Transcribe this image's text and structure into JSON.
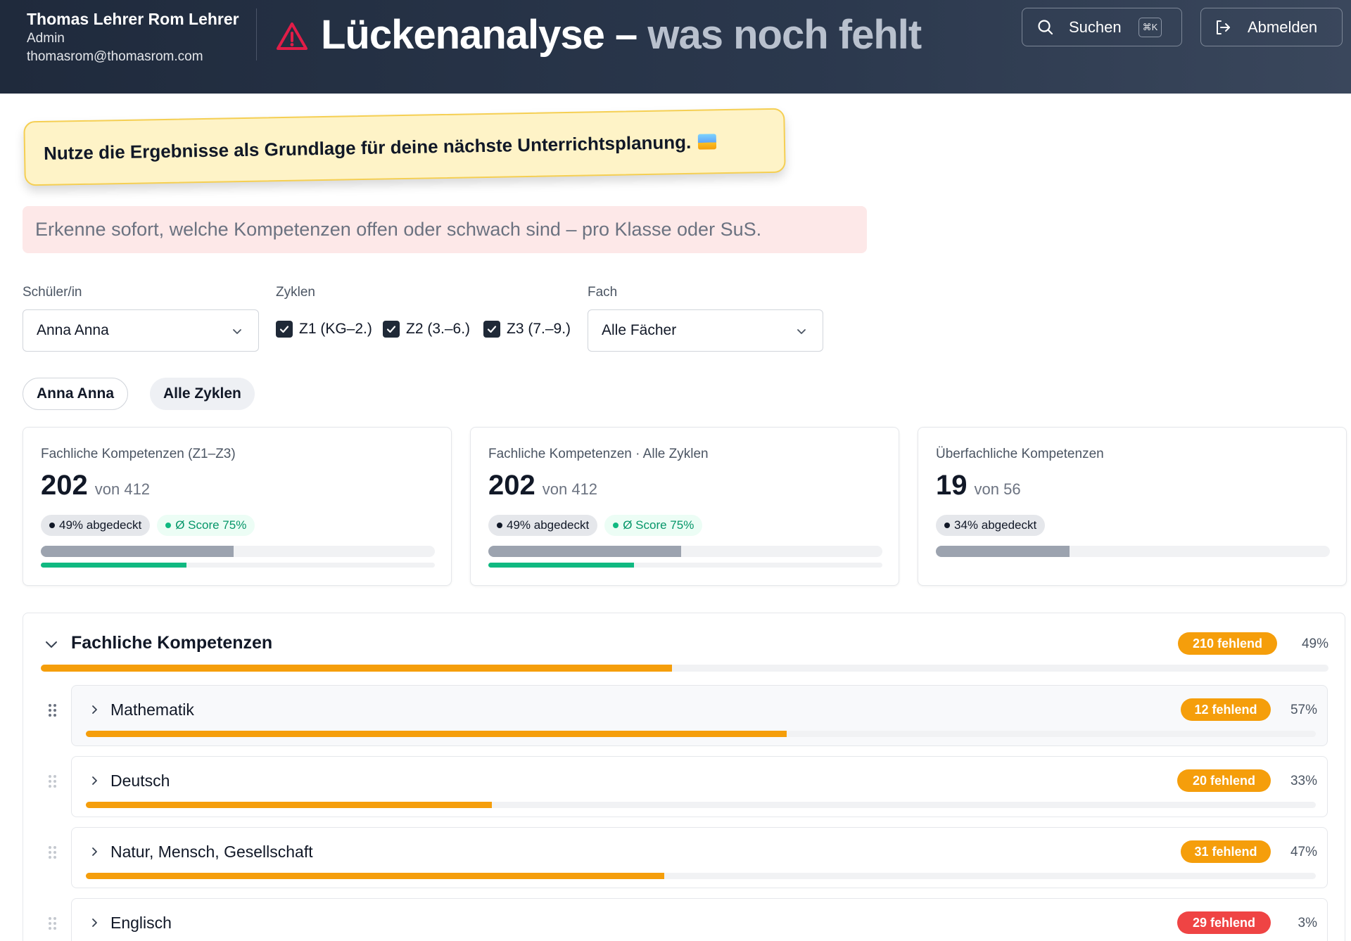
{
  "header": {
    "user_name": "Thomas Lehrer Rom Lehrer",
    "user_role": "Admin",
    "user_email": "thomasrom@thomasrom.com",
    "title_main": "Lückenanalyse – ",
    "title_sub": "was noch fehlt",
    "search_label": "Suchen",
    "search_shortcut": "⌘K",
    "logout_label": "Abmelden"
  },
  "note": {
    "text": "Nutze die Ergebnisse als Grundlage für deine nächste Unterrichtsplanung."
  },
  "info": {
    "text": "Erkenne sofort, welche Kompetenzen offen oder schwach sind – pro Klasse oder SuS."
  },
  "filters": {
    "student_label": "Schüler/in",
    "student_value": "Anna Anna",
    "cycles_label": "Zyklen",
    "cycles": [
      {
        "label": "Z1 (KG–2.)",
        "checked": true
      },
      {
        "label": "Z2 (3.–6.)",
        "checked": true
      },
      {
        "label": "Z3 (7.–9.)",
        "checked": true
      }
    ],
    "subject_label": "Fach",
    "subject_value": "Alle Fächer"
  },
  "chips": {
    "student": "Anna Anna",
    "cycles": "Alle Zyklen"
  },
  "cards": [
    {
      "title": "Fachliche Kompetenzen (Z1–Z3)",
      "value": "202",
      "of": "von 412",
      "coverage": "49% abgedeckt",
      "score": "Ø Score 75%",
      "coverage_fraction": 0.49,
      "score_fraction": 0.37
    },
    {
      "title": "Fachliche Kompetenzen · Alle Zyklen",
      "value": "202",
      "of": "von 412",
      "coverage": "49% abgedeckt",
      "score": "Ø Score 75%",
      "coverage_fraction": 0.49,
      "score_fraction": 0.37
    },
    {
      "title": "Überfachliche Kompetenzen",
      "value": "19",
      "of": "von 56",
      "coverage": "34% abgedeckt",
      "coverage_fraction": 0.34
    }
  ],
  "section": {
    "title": "Fachliche Kompetenzen",
    "missing": "210 fehlend",
    "percent": "49%",
    "fraction": 0.49,
    "subjects": [
      {
        "name": "Mathematik",
        "missing": "12 fehlend",
        "percent": "57%",
        "fraction": 0.57,
        "status_color": "#f59e0b"
      },
      {
        "name": "Deutsch",
        "missing": "20 fehlend",
        "percent": "33%",
        "fraction": 0.33,
        "status_color": "#f59e0b"
      },
      {
        "name": "Natur, Mensch, Gesellschaft",
        "missing": "31 fehlend",
        "percent": "47%",
        "fraction": 0.47,
        "status_color": "#f59e0b"
      },
      {
        "name": "Englisch",
        "missing": "29 fehlend",
        "percent": "3%",
        "fraction": 0.03,
        "status_color": "#ef4444"
      }
    ]
  },
  "colors": {
    "accent": "#f59e0b",
    "danger": "#ef4444",
    "success": "#10b981",
    "header_bg": "#1f2a3c"
  },
  "icons": {
    "warning": "warning-triangle-icon",
    "search": "search-icon",
    "logout": "logout-icon",
    "chevron": "chevron-down-icon",
    "grip": "drag-handle-icon"
  }
}
